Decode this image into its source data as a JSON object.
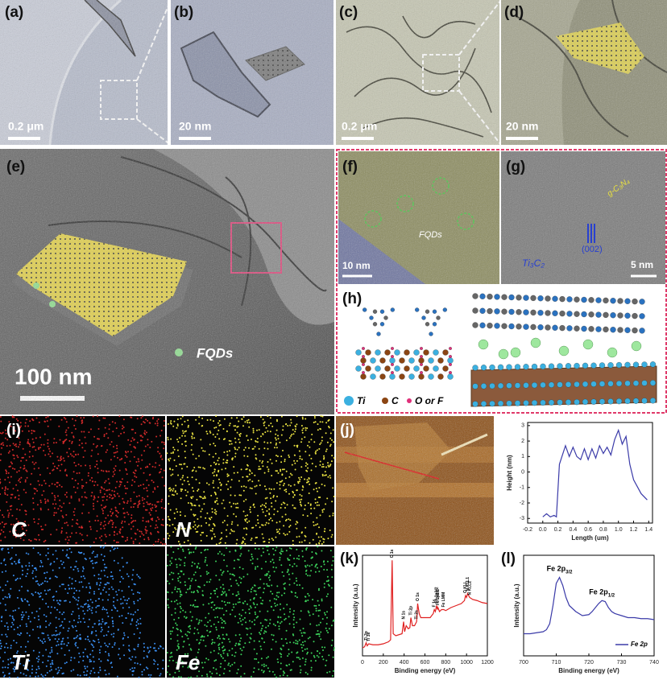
{
  "panels": {
    "a": {
      "label": "(a)",
      "scale_bar": "0.2 μm"
    },
    "b": {
      "label": "(b)",
      "scale_bar": "20 nm"
    },
    "c": {
      "label": "(c)",
      "scale_bar": "0.2 μm"
    },
    "d": {
      "label": "(d)",
      "scale_bar": "20 nm"
    },
    "e": {
      "label": "(e)",
      "scale_bar": "100 nm",
      "annotation": "FQDs"
    },
    "f": {
      "label": "(f)",
      "scale_bar": "10 nm",
      "annotation": "FQDs"
    },
    "g": {
      "label": "(g)",
      "scale_bar": "5 nm",
      "annotations": [
        "g-C₃N₄",
        "(002)",
        "Ti₃C₂"
      ]
    },
    "h": {
      "label": "(h)",
      "legend": [
        "Ti",
        "C",
        "O or F"
      ]
    },
    "i": {
      "label": "(i)",
      "maps": [
        "C",
        "N",
        "Ti",
        "Fe"
      ]
    },
    "j": {
      "label": "(j)"
    },
    "k": {
      "label": "(k)"
    },
    "l": {
      "label": "(l)"
    }
  },
  "chart_data": [
    {
      "type": "line",
      "x_label": "Length (um)",
      "y_label": "Height (nm)",
      "xlim": [
        -0.2,
        1.45
      ],
      "ylim": [
        -3.3,
        3.2
      ],
      "xticks": [
        -0.2,
        {
          "value": 0,
          "label": "0.0"
        },
        0.2,
        0.4,
        0.6,
        0.8,
        {
          "value": 1,
          "label": "1.0"
        },
        1.2,
        1.4
      ],
      "yticks": [
        -3,
        -2,
        -1,
        0,
        1,
        2,
        3
      ],
      "x": [
        0,
        0.05,
        0.1,
        0.15,
        0.18,
        0.22,
        0.3,
        0.35,
        0.4,
        0.45,
        0.5,
        0.55,
        0.6,
        0.65,
        0.7,
        0.75,
        0.8,
        0.85,
        0.9,
        0.95,
        1.0,
        1.05,
        1.1,
        1.15,
        1.2,
        1.3,
        1.38
      ],
      "series": [
        {
          "color": "#3a3aa8",
          "values": [
            -2.9,
            -2.7,
            -2.9,
            -2.8,
            -2.9,
            0.5,
            1.7,
            1.0,
            1.6,
            1.0,
            0.8,
            1.5,
            0.8,
            1.5,
            0.9,
            1.7,
            1.2,
            1.6,
            1.1,
            2.1,
            2.7,
            1.8,
            2.3,
            0.5,
            -0.5,
            -1.4,
            -1.8
          ]
        }
      ]
    },
    {
      "type": "line",
      "x_label": "Binding energy (eV)",
      "y_label": "Intensity (a.u.)",
      "xlim": [
        0,
        1200
      ],
      "ylim": [
        0,
        100
      ],
      "xticks": [
        0,
        200,
        400,
        600,
        800,
        1000,
        1200
      ],
      "x": [
        0,
        20,
        35,
        45,
        60,
        100,
        150,
        200,
        250,
        270,
        285,
        295,
        320,
        380,
        395,
        405,
        420,
        440,
        455,
        465,
        480,
        500,
        520,
        530,
        545,
        560,
        600,
        650,
        680,
        690,
        700,
        712,
        720,
        725,
        740,
        760,
        780,
        800,
        850,
        900,
        950,
        980,
        990,
        1000,
        1010,
        1030,
        1060,
        1100,
        1150,
        1200
      ],
      "series": [
        {
          "color": "#e02020",
          "values": [
            8,
            9,
            13,
            10,
            12,
            11,
            11,
            12,
            14,
            16,
            95,
            22,
            20,
            22,
            34,
            24,
            30,
            27,
            28,
            38,
            30,
            30,
            34,
            52,
            42,
            38,
            38,
            38,
            42,
            46,
            44,
            50,
            46,
            48,
            44,
            46,
            46,
            45,
            48,
            50,
            52,
            55,
            60,
            58,
            62,
            58,
            56,
            55,
            53,
            52
          ]
        }
      ],
      "annotations": [
        {
          "text": "Ti 3p",
          "x": 35
        },
        {
          "text": "Ti 3s",
          "x": 60
        },
        {
          "text": "C 1s",
          "x": 285
        },
        {
          "text": "N 1s",
          "x": 395
        },
        {
          "text": "Ti 2p",
          "x": 465
        },
        {
          "text": "Ti 2s",
          "x": 520
        },
        {
          "text": "O 1s",
          "x": 530
        },
        {
          "text": "F 1s",
          "x": 690
        },
        {
          "text": "Fe 2p3/2",
          "x": 712
        },
        {
          "text": "Fe 2p1/2",
          "x": 725
        },
        {
          "text": "Fe LMM",
          "x": 780
        },
        {
          "text": "O KLL",
          "x": 990
        },
        {
          "text": "N KLL1",
          "x": 1010
        },
        {
          "text": "N KLL2",
          "x": 1030
        }
      ]
    },
    {
      "type": "line",
      "x_label": "Binding energy (eV)",
      "y_label": "Intensity (a.u.)",
      "xlim": [
        700,
        740
      ],
      "ylim": [
        0,
        100
      ],
      "xticks": [
        700,
        710,
        720,
        730,
        740
      ],
      "x": [
        700,
        702,
        704,
        706,
        707,
        708,
        709,
        710,
        711,
        712,
        713,
        714,
        716,
        718,
        720,
        721,
        722,
        723,
        724,
        725,
        726,
        727,
        728,
        730,
        732,
        734,
        736,
        738,
        740
      ],
      "series": [
        {
          "name": "Fe 2p",
          "color": "#3a3aa8",
          "values": [
            22,
            22,
            23,
            24,
            26,
            32,
            50,
            72,
            78,
            70,
            58,
            50,
            44,
            40,
            41,
            44,
            48,
            52,
            55,
            54,
            48,
            44,
            42,
            40,
            38,
            38,
            37,
            37,
            36
          ]
        }
      ],
      "annotations": [
        {
          "text": "Fe 2p",
          "sub": "3/2",
          "x": 711
        },
        {
          "text": "Fe 2p",
          "sub": "1/2",
          "x": 724
        }
      ]
    }
  ]
}
